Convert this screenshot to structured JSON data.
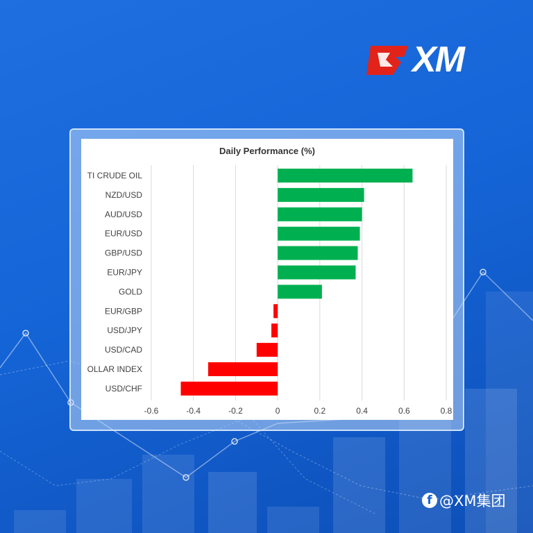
{
  "brand": {
    "logo_text": "XM",
    "watermark": "@XM集团",
    "icon": "facebook-icon"
  },
  "colors": {
    "positive": "#00b050",
    "negative": "#ff0000",
    "background": "#1565d8"
  },
  "chart_data": {
    "type": "bar",
    "orientation": "horizontal",
    "title": "Daily Performance (%)",
    "categories": [
      "TI CRUDE OIL",
      "NZD/USD",
      "AUD/USD",
      "EUR/USD",
      "GBP/USD",
      "EUR/JPY",
      "GOLD",
      "EUR/GBP",
      "USD/JPY",
      "USD/CAD",
      "OLLAR INDEX",
      "USD/CHF"
    ],
    "values": [
      0.64,
      0.41,
      0.4,
      0.39,
      0.38,
      0.37,
      0.21,
      -0.02,
      -0.03,
      -0.1,
      -0.33,
      -0.46
    ],
    "xlim": [
      -0.6,
      0.8
    ],
    "xticks": [
      "-0.6",
      "-0.4",
      "-0.2",
      "0",
      "0.2",
      "0.4",
      "0.6",
      "0.8"
    ],
    "grid": true,
    "legend": "none"
  }
}
